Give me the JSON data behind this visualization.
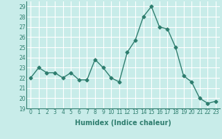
{
  "x": [
    0,
    1,
    2,
    3,
    4,
    5,
    6,
    7,
    8,
    9,
    10,
    11,
    12,
    13,
    14,
    15,
    16,
    17,
    18,
    19,
    20,
    21,
    22,
    23
  ],
  "y": [
    22,
    23,
    22.5,
    22.5,
    22,
    22.5,
    21.8,
    21.8,
    23.8,
    23,
    22,
    21.6,
    24.5,
    25.7,
    28,
    29,
    27,
    26.8,
    25,
    22.2,
    21.6,
    20,
    19.5,
    19.7
  ],
  "line_color": "#2e7d6e",
  "marker": "D",
  "marker_size": 2.5,
  "bg_color": "#c8ece9",
  "grid_color": "#ffffff",
  "xlabel": "Humidex (Indice chaleur)",
  "ylim": [
    19,
    29.5
  ],
  "xlim": [
    -0.5,
    23.5
  ],
  "yticks": [
    19,
    20,
    21,
    22,
    23,
    24,
    25,
    26,
    27,
    28,
    29
  ],
  "xticks": [
    0,
    1,
    2,
    3,
    4,
    5,
    6,
    7,
    8,
    9,
    10,
    11,
    12,
    13,
    14,
    15,
    16,
    17,
    18,
    19,
    20,
    21,
    22,
    23
  ],
  "tick_label_fontsize": 5.5,
  "xlabel_fontsize": 7,
  "line_width": 1.0
}
